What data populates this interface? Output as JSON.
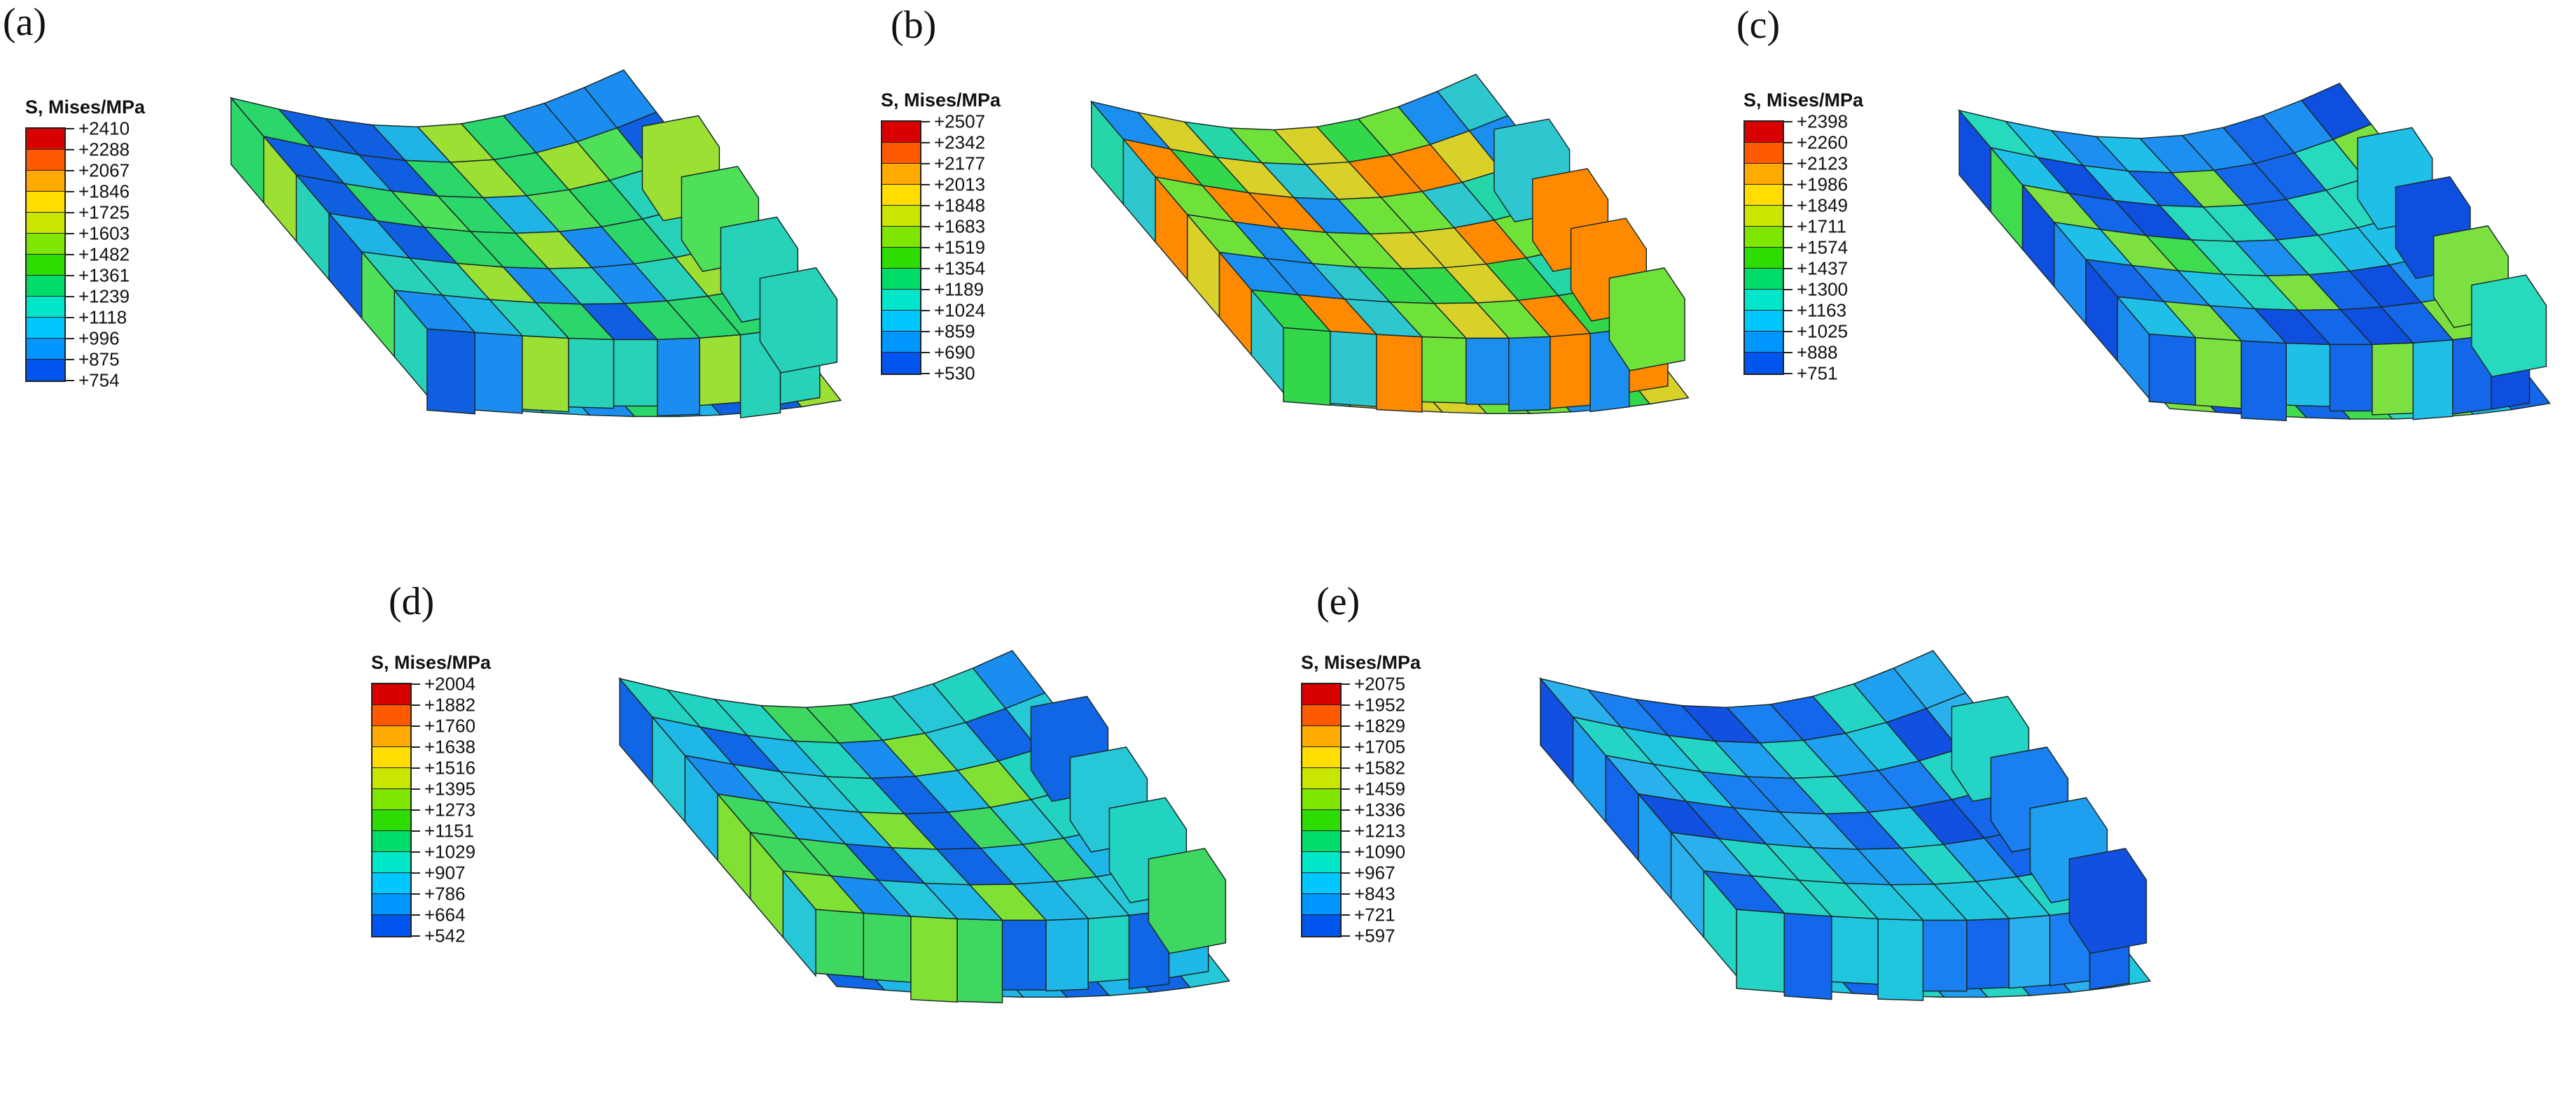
{
  "colors": [
    "#d90000",
    "#ff5a00",
    "#ffaa00",
    "#ffdd00",
    "#c8e600",
    "#7ee600",
    "#2ddc00",
    "#00dc6a",
    "#00e6c8",
    "#00c8ff",
    "#0096ff",
    "#0055ee",
    "#0000dc"
  ],
  "panels": [
    {
      "id": "a",
      "label": "(a)",
      "legend_title": "S, Mises/MPa",
      "values": [
        "+2410",
        "+2288",
        "+2067",
        "+1846",
        "+1725",
        "+1603",
        "+1482",
        "+1361",
        "+1239",
        "+1118",
        "+996",
        "+875",
        "+754"
      ]
    },
    {
      "id": "b",
      "label": "(b)",
      "legend_title": "S, Mises/MPa",
      "values": [
        "+2507",
        "+2342",
        "+2177",
        "+2013",
        "+1848",
        "+1683",
        "+1519",
        "+1354",
        "+1189",
        "+1024",
        "+859",
        "+690",
        "+530"
      ]
    },
    {
      "id": "c",
      "label": "(c)",
      "legend_title": "S, Mises/MPa",
      "values": [
        "+2398",
        "+2260",
        "+2123",
        "+1986",
        "+1849",
        "+1711",
        "+1574",
        "+1437",
        "+1300",
        "+1163",
        "+1025",
        "+888",
        "+751"
      ]
    },
    {
      "id": "d",
      "label": "(d)",
      "legend_title": "S, Mises/MPa",
      "values": [
        "+2004",
        "+1882",
        "+1760",
        "+1638",
        "+1516",
        "+1395",
        "+1273",
        "+1151",
        "+1029",
        "+907",
        "+786",
        "+664",
        "+542"
      ]
    },
    {
      "id": "e",
      "label": "(e)",
      "legend_title": "S, Mises/MPa",
      "values": [
        "+2075",
        "+1952",
        "+1829",
        "+1705",
        "+1582",
        "+1459",
        "+1336",
        "+1213",
        "+1090",
        "+967",
        "+843",
        "+721",
        "+597"
      ]
    }
  ]
}
